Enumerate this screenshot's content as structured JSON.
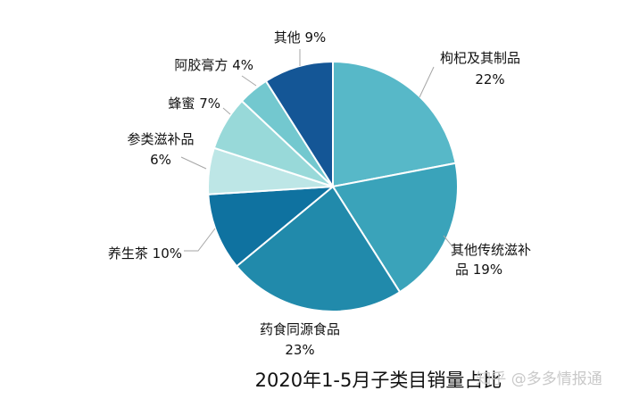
{
  "chart_data": {
    "type": "pie",
    "title": "2020年1-5月子类目销量占比",
    "unit": "%",
    "slices": [
      {
        "name": "枸杞及其制品",
        "value": 22,
        "label": "22%",
        "color": "#57b8c8"
      },
      {
        "name": "其他传统滋补品",
        "value": 19,
        "label": "19%",
        "color": "#3aa3ba"
      },
      {
        "name": "药食同源食品",
        "value": 23,
        "label": "23%",
        "color": "#218aab"
      },
      {
        "name": "养生茶",
        "value": 10,
        "label": "10%",
        "color": "#0f72a0"
      },
      {
        "name": "参类滋补品",
        "value": 6,
        "label": "6%",
        "color": "#bde6e6"
      },
      {
        "name": "蜂蜜",
        "value": 7,
        "label": "7%",
        "color": "#98d9d9"
      },
      {
        "name": "阿胶膏方",
        "value": 4,
        "label": "4%",
        "color": "#73c8cf"
      },
      {
        "name": "其他",
        "value": 9,
        "label": "9%",
        "color": "#145696"
      }
    ]
  },
  "watermark": "知乎 @多多情报通"
}
